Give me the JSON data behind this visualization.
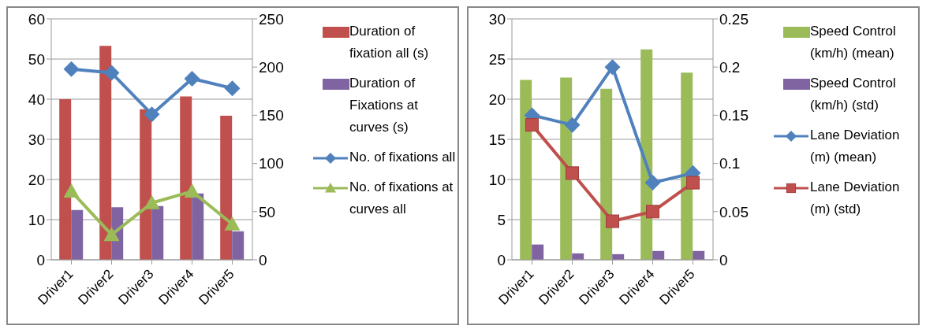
{
  "chart_data": [
    {
      "type": "bar",
      "categories": [
        "Driver1",
        "Driver2",
        "Driver3",
        "Driver4",
        "Driver5"
      ],
      "series": [
        {
          "name": "Duration of fixation all (s)",
          "color": "#c0504d",
          "values": [
            40,
            53.3,
            37.5,
            40.7,
            35.9
          ]
        },
        {
          "name": "Duration of Fixations at curves (s)",
          "color": "#8064a2",
          "values": [
            12.4,
            13.1,
            13.4,
            16.5,
            7.1
          ]
        },
        {
          "name": "No. of fixations all",
          "type": "line",
          "axis": "y2",
          "marker": "diamond",
          "color": "#4f81bd",
          "values": [
            198,
            194,
            151,
            188,
            178
          ]
        },
        {
          "name": "No. of fixations at curves all",
          "type": "line",
          "axis": "y2",
          "marker": "triangle",
          "color": "#9bbb59",
          "values": [
            71,
            26,
            59,
            71,
            37
          ]
        }
      ],
      "ylim": [
        0,
        60
      ],
      "yticks": [
        0,
        10,
        20,
        30,
        40,
        50,
        60
      ],
      "y2lim": [
        0,
        250
      ],
      "y2ticks": [
        0,
        50,
        100,
        150,
        200,
        250
      ],
      "grid": "y",
      "legend": "right"
    },
    {
      "type": "bar",
      "categories": [
        "Driver1",
        "Driver2",
        "Driver3",
        "Driver4",
        "Driver5"
      ],
      "series": [
        {
          "name": "Speed Control (km/h) (mean)",
          "color": "#9bbb59",
          "values": [
            22.4,
            22.7,
            21.3,
            26.2,
            23.3
          ]
        },
        {
          "name": "Speed Control (km/h) (std)",
          "color": "#8064a2",
          "values": [
            1.9,
            0.8,
            0.7,
            1.1,
            1.1
          ]
        },
        {
          "name": "Lane Deviation (m) (mean)",
          "type": "line",
          "axis": "y2",
          "marker": "diamond",
          "color": "#4f81bd",
          "values": [
            0.15,
            0.14,
            0.2,
            0.08,
            0.09
          ]
        },
        {
          "name": "Lane Deviation (m) (std)",
          "type": "line",
          "axis": "y2",
          "marker": "square",
          "color": "#c0504d",
          "values": [
            0.14,
            0.09,
            0.04,
            0.05,
            0.08
          ]
        }
      ],
      "ylim": [
        0,
        30
      ],
      "yticks": [
        0,
        5,
        10,
        15,
        20,
        25,
        30
      ],
      "y2lim": [
        0,
        0.25
      ],
      "y2ticks": [
        0,
        0.05,
        0.1,
        0.15,
        0.2,
        0.25
      ],
      "grid": "y",
      "legend": "right"
    }
  ]
}
